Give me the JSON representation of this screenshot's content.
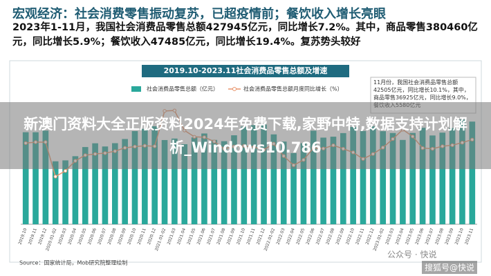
{
  "header": {
    "title": "宏观经济：社会消费零售振动复苏，已超疫情前；餐饮收入增长亮眼",
    "summary": "2023年1-11月，我国社会消费品零售总额427945亿元，同比增长7.2%。其中，商品零售380460亿元，同比增长5.9%；餐饮收入47485亿元，同比增长19.4%。复苏势头较好"
  },
  "chart_data": {
    "type": "bar-line",
    "title": "2019.10-2023.11社会消费品零售总额及增速",
    "annotation": "11月份，我国社会消费品零售总额42505亿元，同比增长10.1%，其中，商品零售36925亿元，同比增长9.0%，餐饮收入5580亿元",
    "categories": [
      "2019.10",
      "2019.11",
      "2019.12",
      "2020.01-02",
      "2020.03",
      "2020.04",
      "2020.05",
      "2020.06",
      "2020.07",
      "2020.08",
      "2020.09",
      "2020.10",
      "2020.11",
      "2020.12",
      "2021.01-02",
      "2021.03",
      "2021.04",
      "2021.05",
      "2021.06",
      "2021.07",
      "2021.08",
      "2021.09",
      "2021.10",
      "2021.11",
      "2021.12",
      "2022.01-02",
      "2022.03",
      "2022.04",
      "2022.05",
      "2022.06",
      "2022.07",
      "2022.08",
      "2022.09",
      "2022.10",
      "2022.11",
      "2022.12",
      "2023.01-02",
      "2023.03",
      "2023.04",
      "2023.05",
      "2023.06",
      "2023.07",
      "2023.08",
      "2023.09",
      "2023.10",
      "2023.11"
    ],
    "series": [
      {
        "name": "社会消费品零售总额（亿元）",
        "color": "#2aa89b",
        "values": [
          38104,
          38094,
          38777,
          26065,
          26450,
          28178,
          31973,
          33526,
          32203,
          33571,
          35295,
          38576,
          39514,
          40566,
          34869,
          35484,
          33153,
          35945,
          37586,
          34925,
          34395,
          36833,
          40454,
          41043,
          41269,
          37211,
          34233,
          29483,
          33547,
          38742,
          35870,
          36258,
          37745,
          40271,
          38615,
          40542,
          38533,
          37780,
          34910,
          37803,
          39951,
          36761,
          37933,
          39826,
          43333,
          42505
        ]
      },
      {
        "name": "社会消费品零售总额月度同比增长（%）",
        "color": "#e8946b",
        "axis": "y2",
        "values": [
          7.2,
          8.0,
          8.0,
          -20.5,
          -15.8,
          -7.5,
          -2.8,
          -1.8,
          -1.1,
          0.5,
          3.3,
          4.3,
          5.0,
          4.6,
          33.8,
          34.2,
          17.7,
          12.4,
          12.1,
          8.5,
          2.5,
          4.4,
          4.9,
          3.9,
          1.7,
          6.7,
          -3.5,
          -11.1,
          -6.7,
          3.1,
          2.7,
          5.4,
          2.5,
          -0.5,
          -5.9,
          -1.8,
          3.5,
          10.6,
          18.4,
          12.7,
          3.1,
          2.5,
          4.6,
          5.5,
          7.6,
          10.1
        ]
      }
    ],
    "ylim": [
      0,
      50000
    ],
    "y2lim": [
      -60,
      40
    ],
    "source": "Source：国家统计局，Mob研究院整理绘制"
  },
  "watermark": {
    "left": "公众号 · 快说",
    "right": "搜狐号@快说"
  },
  "overlay": {
    "text": "新澳门资料大全正版资料2024年免费下载,家野中特,数据支持计划解析_Windows10.786"
  }
}
